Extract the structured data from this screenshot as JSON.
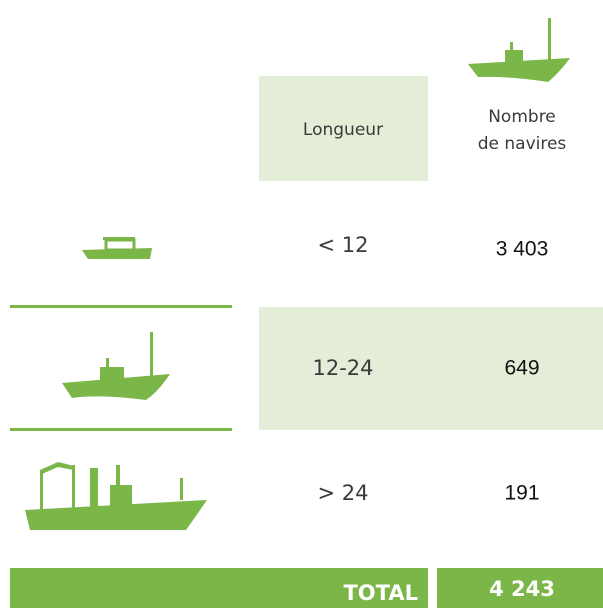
{
  "header": {
    "length": "Longueur",
    "count_lines": [
      "Nombre",
      "de navires"
    ]
  },
  "table": {
    "rows": [
      [
        "< 12",
        "3 403"
      ],
      [
        "12-24",
        "649"
      ],
      [
        "> 24",
        "191"
      ]
    ]
  },
  "total": {
    "label": "TOTAL",
    "value": "4 243"
  }
}
